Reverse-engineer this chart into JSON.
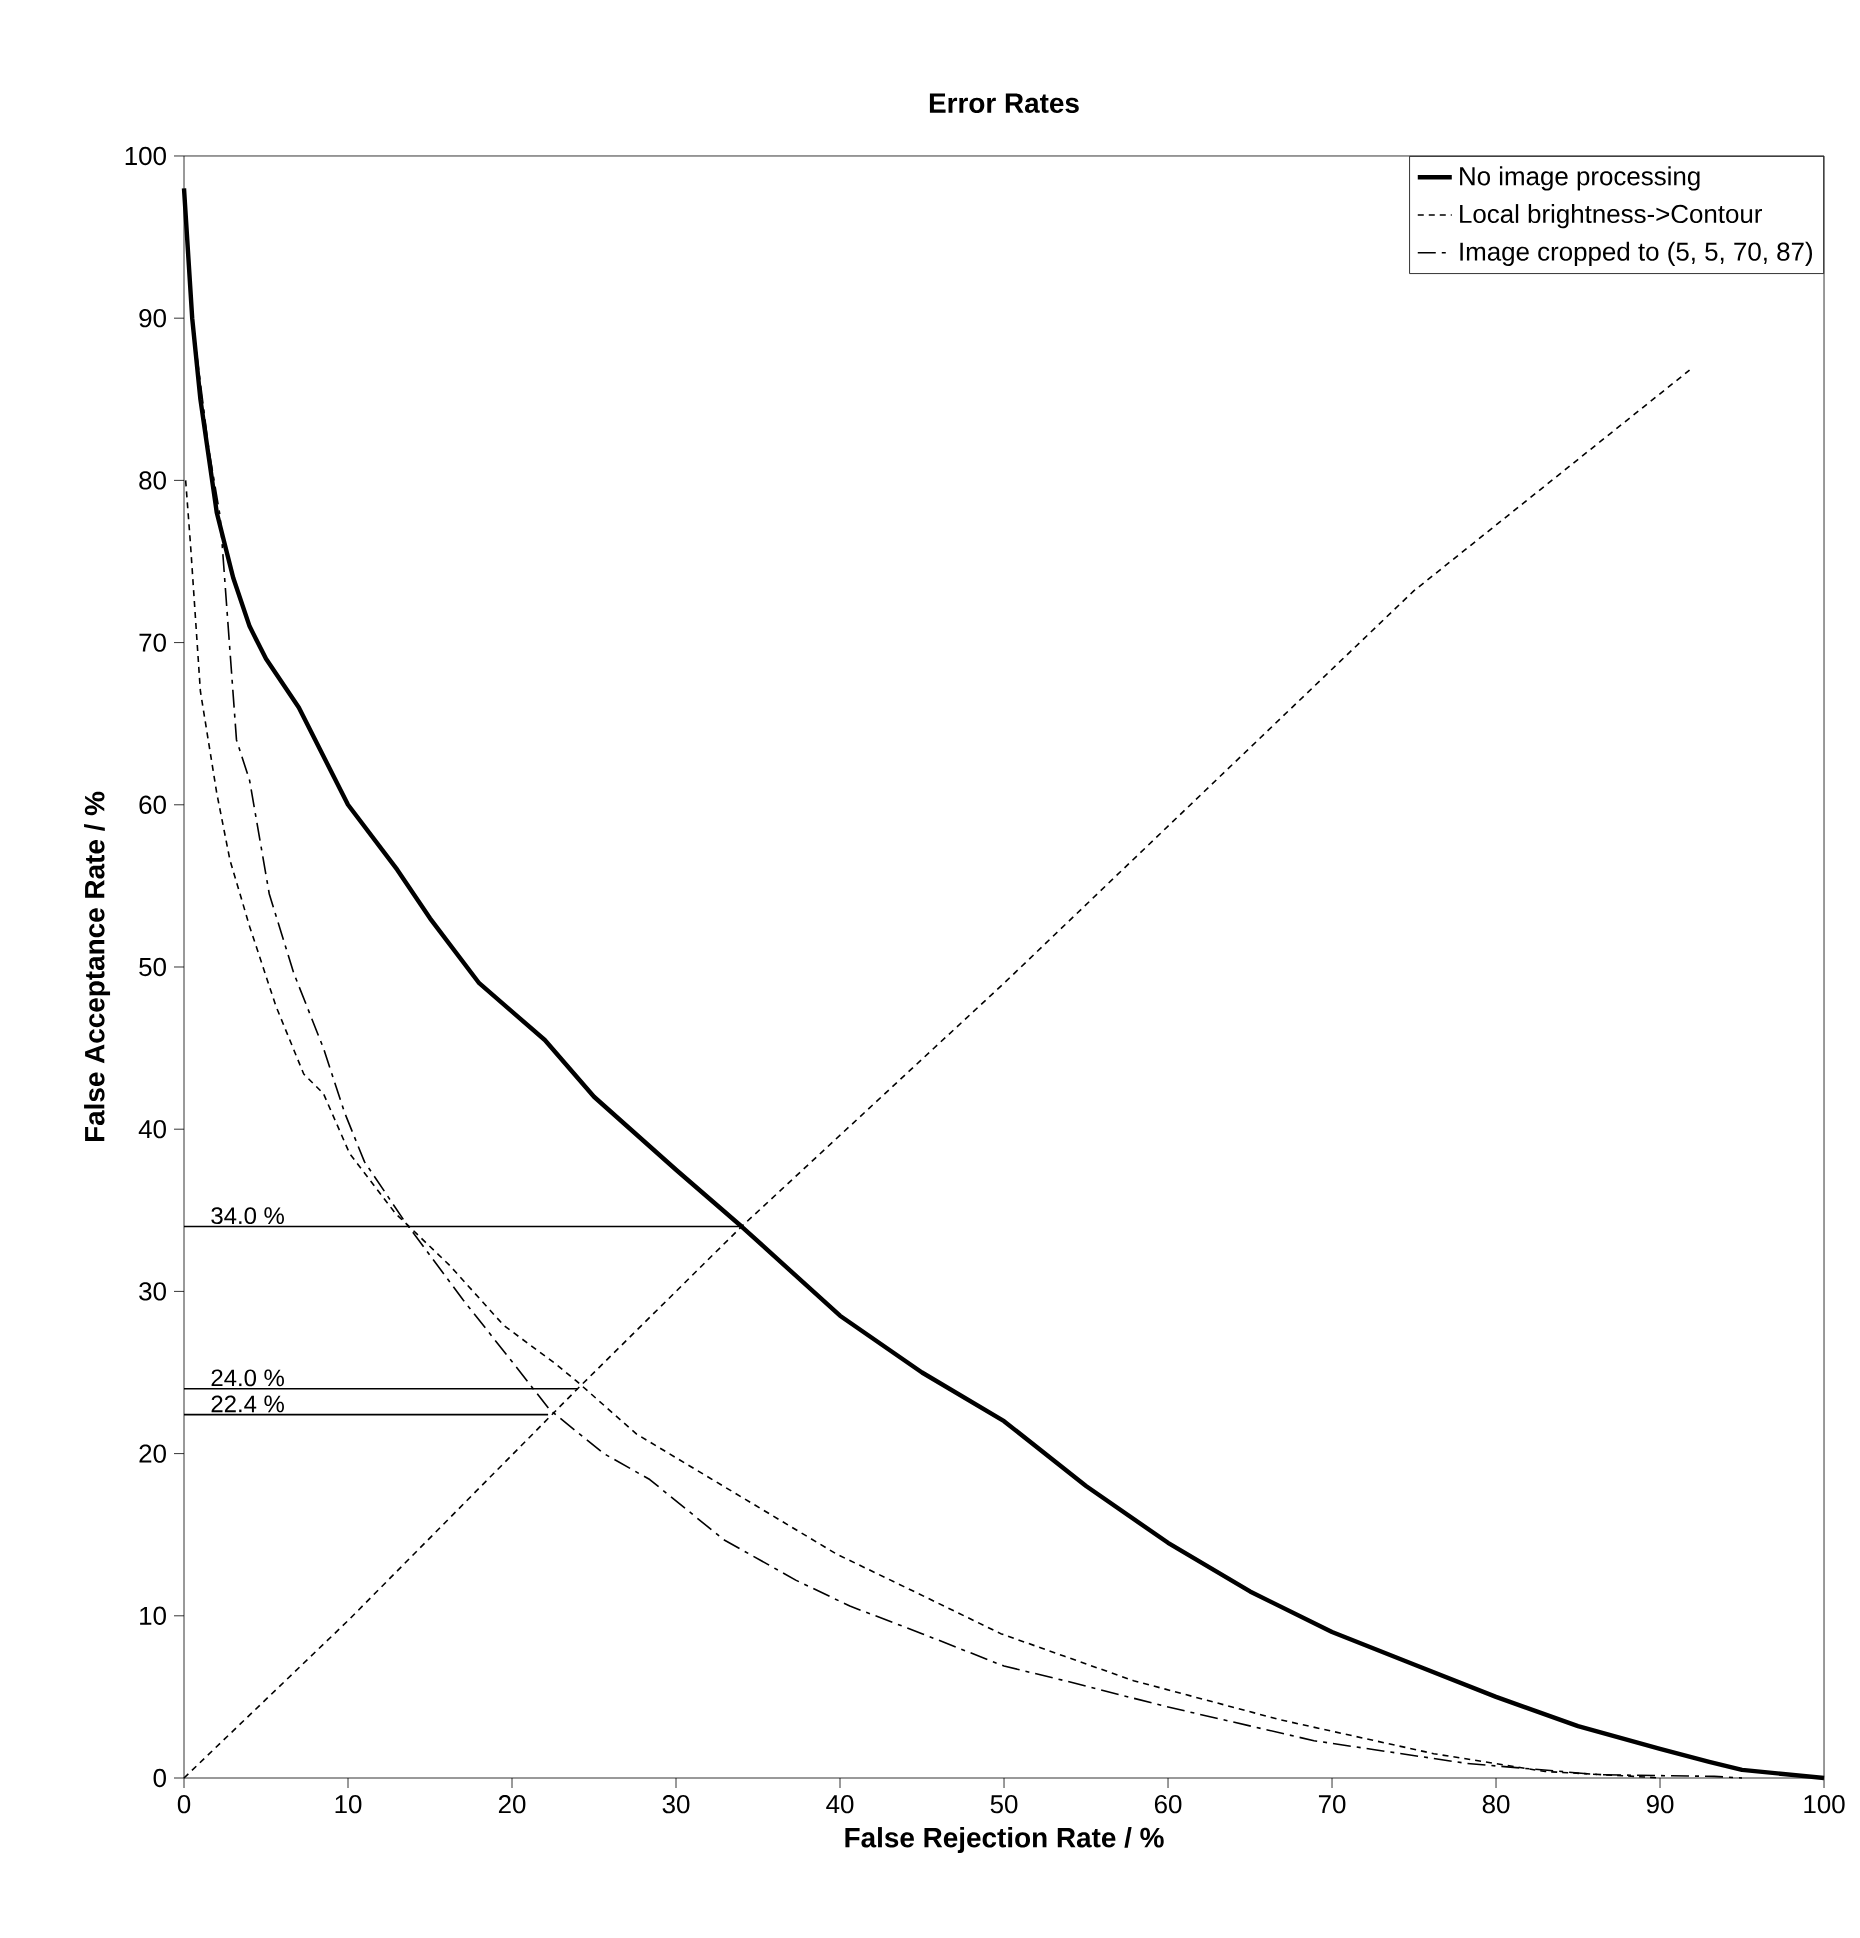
{
  "chart_data": {
    "type": "line",
    "title": "Error Rates",
    "xlabel": "False Rejection Rate / %",
    "ylabel": "False Acceptance Rate / %",
    "xlim": [
      0,
      100
    ],
    "ylim": [
      0,
      100
    ],
    "xticks": [
      0,
      10,
      20,
      30,
      40,
      50,
      60,
      70,
      80,
      90,
      100
    ],
    "yticks": [
      0,
      10,
      20,
      30,
      40,
      50,
      60,
      70,
      80,
      90,
      100
    ],
    "grid": false,
    "legend": "top right",
    "marker": "none",
    "series": [
      {
        "name": "No image processing",
        "color": "#000000",
        "line_style": "solid",
        "x": [
          0,
          0.5,
          1,
          2,
          3,
          4,
          5,
          7,
          10,
          13,
          15,
          18,
          22,
          25,
          30,
          34,
          40,
          45,
          50,
          55,
          60,
          65,
          70,
          75,
          80,
          85,
          90,
          93,
          95,
          100
        ],
        "values": [
          98,
          90,
          85,
          78,
          74,
          71,
          69,
          66,
          60,
          56,
          53,
          49,
          45.5,
          42,
          37.5,
          34,
          28.5,
          25,
          22,
          18,
          14.5,
          11.5,
          9,
          7,
          5,
          3.2,
          1.8,
          1,
          0.5,
          0
        ]
      },
      {
        "name": "Local brightness->Contour",
        "color": "#000000",
        "line_style": "dotted",
        "x": [
          0.1,
          0.4,
          1,
          2,
          2.8,
          4,
          5.6,
          7.3,
          8.5,
          10.1,
          12.9,
          16.2,
          19.5,
          22.7,
          23.9,
          27.6,
          33.7,
          39.8,
          43.9,
          49.8,
          53.7,
          57.9,
          66.8,
          76.2,
          83,
          88.4,
          90
        ],
        "values": [
          80,
          76,
          67,
          60.7,
          56.6,
          52.5,
          47.6,
          43.4,
          42.2,
          38.5,
          34.8,
          31.6,
          27.9,
          25.5,
          24.5,
          21.2,
          17.5,
          13.8,
          11.8,
          8.9,
          7.5,
          6,
          3.6,
          1.5,
          0.4,
          0.1,
          0
        ]
      },
      {
        "name": "Image cropped to (5, 5, 70, 87)",
        "color": "#000000",
        "line_style": "dashed",
        "x": [
          0.5,
          1.5,
          2.2,
          3.2,
          4,
          5.2,
          6.7,
          8.5,
          9.8,
          11,
          13.4,
          17,
          19.9,
          22.3,
          25.6,
          28.4,
          32.9,
          37.3,
          40.6,
          45,
          50,
          53.7,
          59.9,
          68.9,
          78.2,
          86.3,
          93.3,
          95
        ],
        "values": [
          90,
          82,
          77.8,
          64,
          61.5,
          54.5,
          49.6,
          45,
          41,
          38,
          34.4,
          29.5,
          25.8,
          22.7,
          20,
          18.4,
          14.7,
          12.2,
          10.6,
          8.9,
          6.9,
          6,
          4.4,
          2.3,
          0.9,
          0.2,
          0.1,
          0
        ]
      },
      {
        "color": "#000000",
        "line_style": "dotted",
        "x": [
          0,
          10,
          24,
          34,
          50,
          75,
          91.8
        ],
        "values": [
          0,
          9.7,
          24,
          34,
          49,
          73.2,
          86.8
        ]
      }
    ],
    "annotations": [
      {
        "text": "34.0 %",
        "x": 34,
        "y": 34
      },
      {
        "text": "24.0 %",
        "x": 24,
        "y": 24
      },
      {
        "text": "22.4 %",
        "x": 22.2,
        "y": 22.4
      }
    ]
  }
}
